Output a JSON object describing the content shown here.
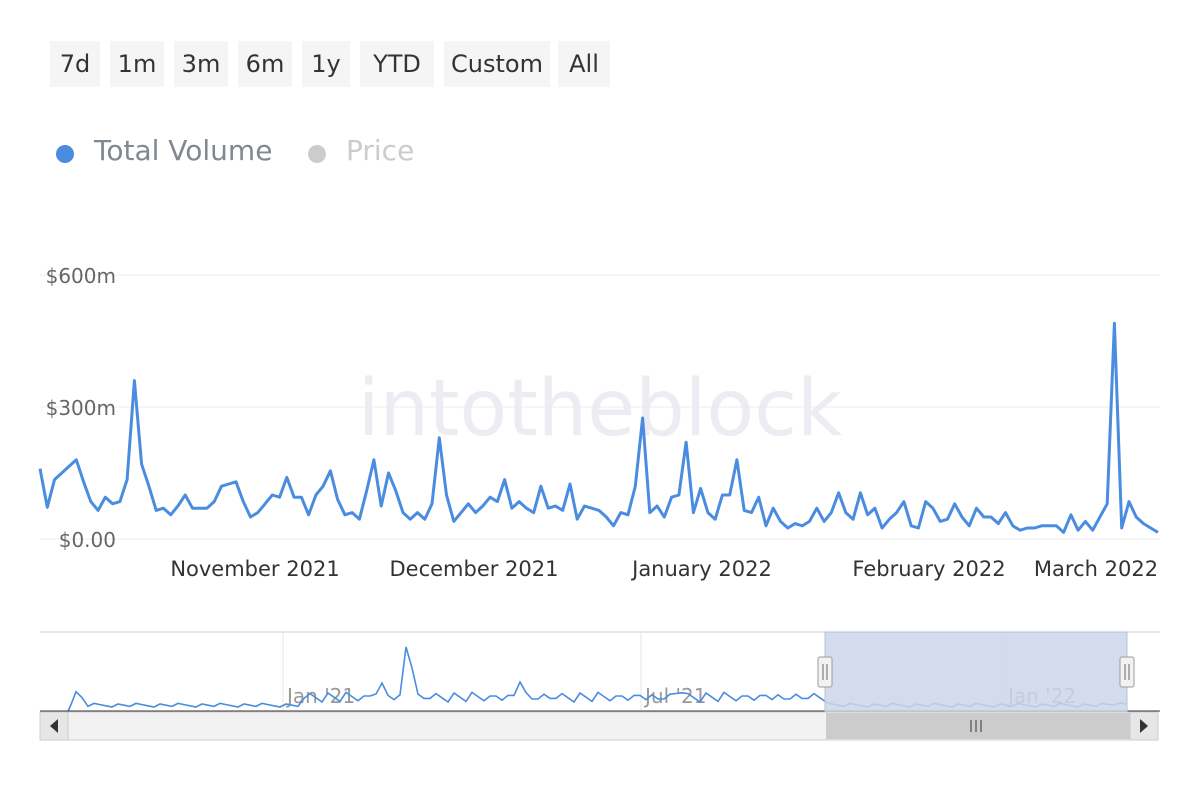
{
  "range_buttons": [
    "7d",
    "1m",
    "3m",
    "6m",
    "1y",
    "YTD",
    "Custom",
    "All"
  ],
  "legend": [
    {
      "label": "Total Volume",
      "color": "#4a8ce0",
      "active": true
    },
    {
      "label": "Price",
      "color": "#cccccc",
      "active": false
    }
  ],
  "watermark": "intotheblock",
  "colors": {
    "series": "#4a8ce0",
    "navigator_mask": "#ccd5ea",
    "text": "#333333"
  },
  "chart_data": {
    "type": "line",
    "series": [
      {
        "name": "Total Volume"
      }
    ],
    "y_axis": {
      "ticks": [
        "$0.00",
        "$300m",
        "$600m"
      ],
      "tick_values": [
        0,
        300,
        600
      ],
      "unit": "millions USD"
    },
    "x_axis": {
      "ticks": [
        "November 2021",
        "December 2021",
        "January 2022",
        "February 2022",
        "March 2022"
      ]
    },
    "x_start": "2021-10-11",
    "x_end": "2022-03-14",
    "y_range": [
      0,
      600
    ],
    "values": [
      160,
      72,
      135,
      150,
      165,
      180,
      130,
      85,
      65,
      95,
      80,
      85,
      135,
      360,
      170,
      120,
      65,
      70,
      55,
      75,
      100,
      70,
      70,
      70,
      85,
      120,
      125,
      130,
      85,
      50,
      60,
      80,
      100,
      95,
      140,
      95,
      95,
      55,
      100,
      120,
      155,
      90,
      55,
      60,
      45,
      110,
      180,
      75,
      150,
      110,
      60,
      45,
      60,
      45,
      80,
      230,
      100,
      40,
      60,
      80,
      60,
      75,
      95,
      85,
      135,
      70,
      85,
      70,
      60,
      120,
      70,
      75,
      65,
      125,
      45,
      75,
      70,
      65,
      50,
      30,
      60,
      55,
      120,
      275,
      60,
      75,
      50,
      95,
      100,
      220,
      60,
      115,
      60,
      45,
      100,
      100,
      180,
      65,
      60,
      95,
      30,
      70,
      40,
      25,
      35,
      30,
      40,
      70,
      40,
      60,
      105,
      60,
      45,
      105,
      55,
      70,
      25,
      45,
      60,
      85,
      30,
      25,
      85,
      70,
      40,
      45,
      80,
      50,
      30,
      70,
      50,
      50,
      35,
      60,
      30,
      20,
      25,
      25,
      30,
      30,
      30,
      15,
      55,
      20,
      40,
      20,
      50,
      80,
      490,
      25,
      85,
      50,
      35,
      25,
      15
    ],
    "navigator": {
      "x_ticks": [
        "Jan '21",
        "Jul '21",
        "Jan '22"
      ]
    }
  }
}
